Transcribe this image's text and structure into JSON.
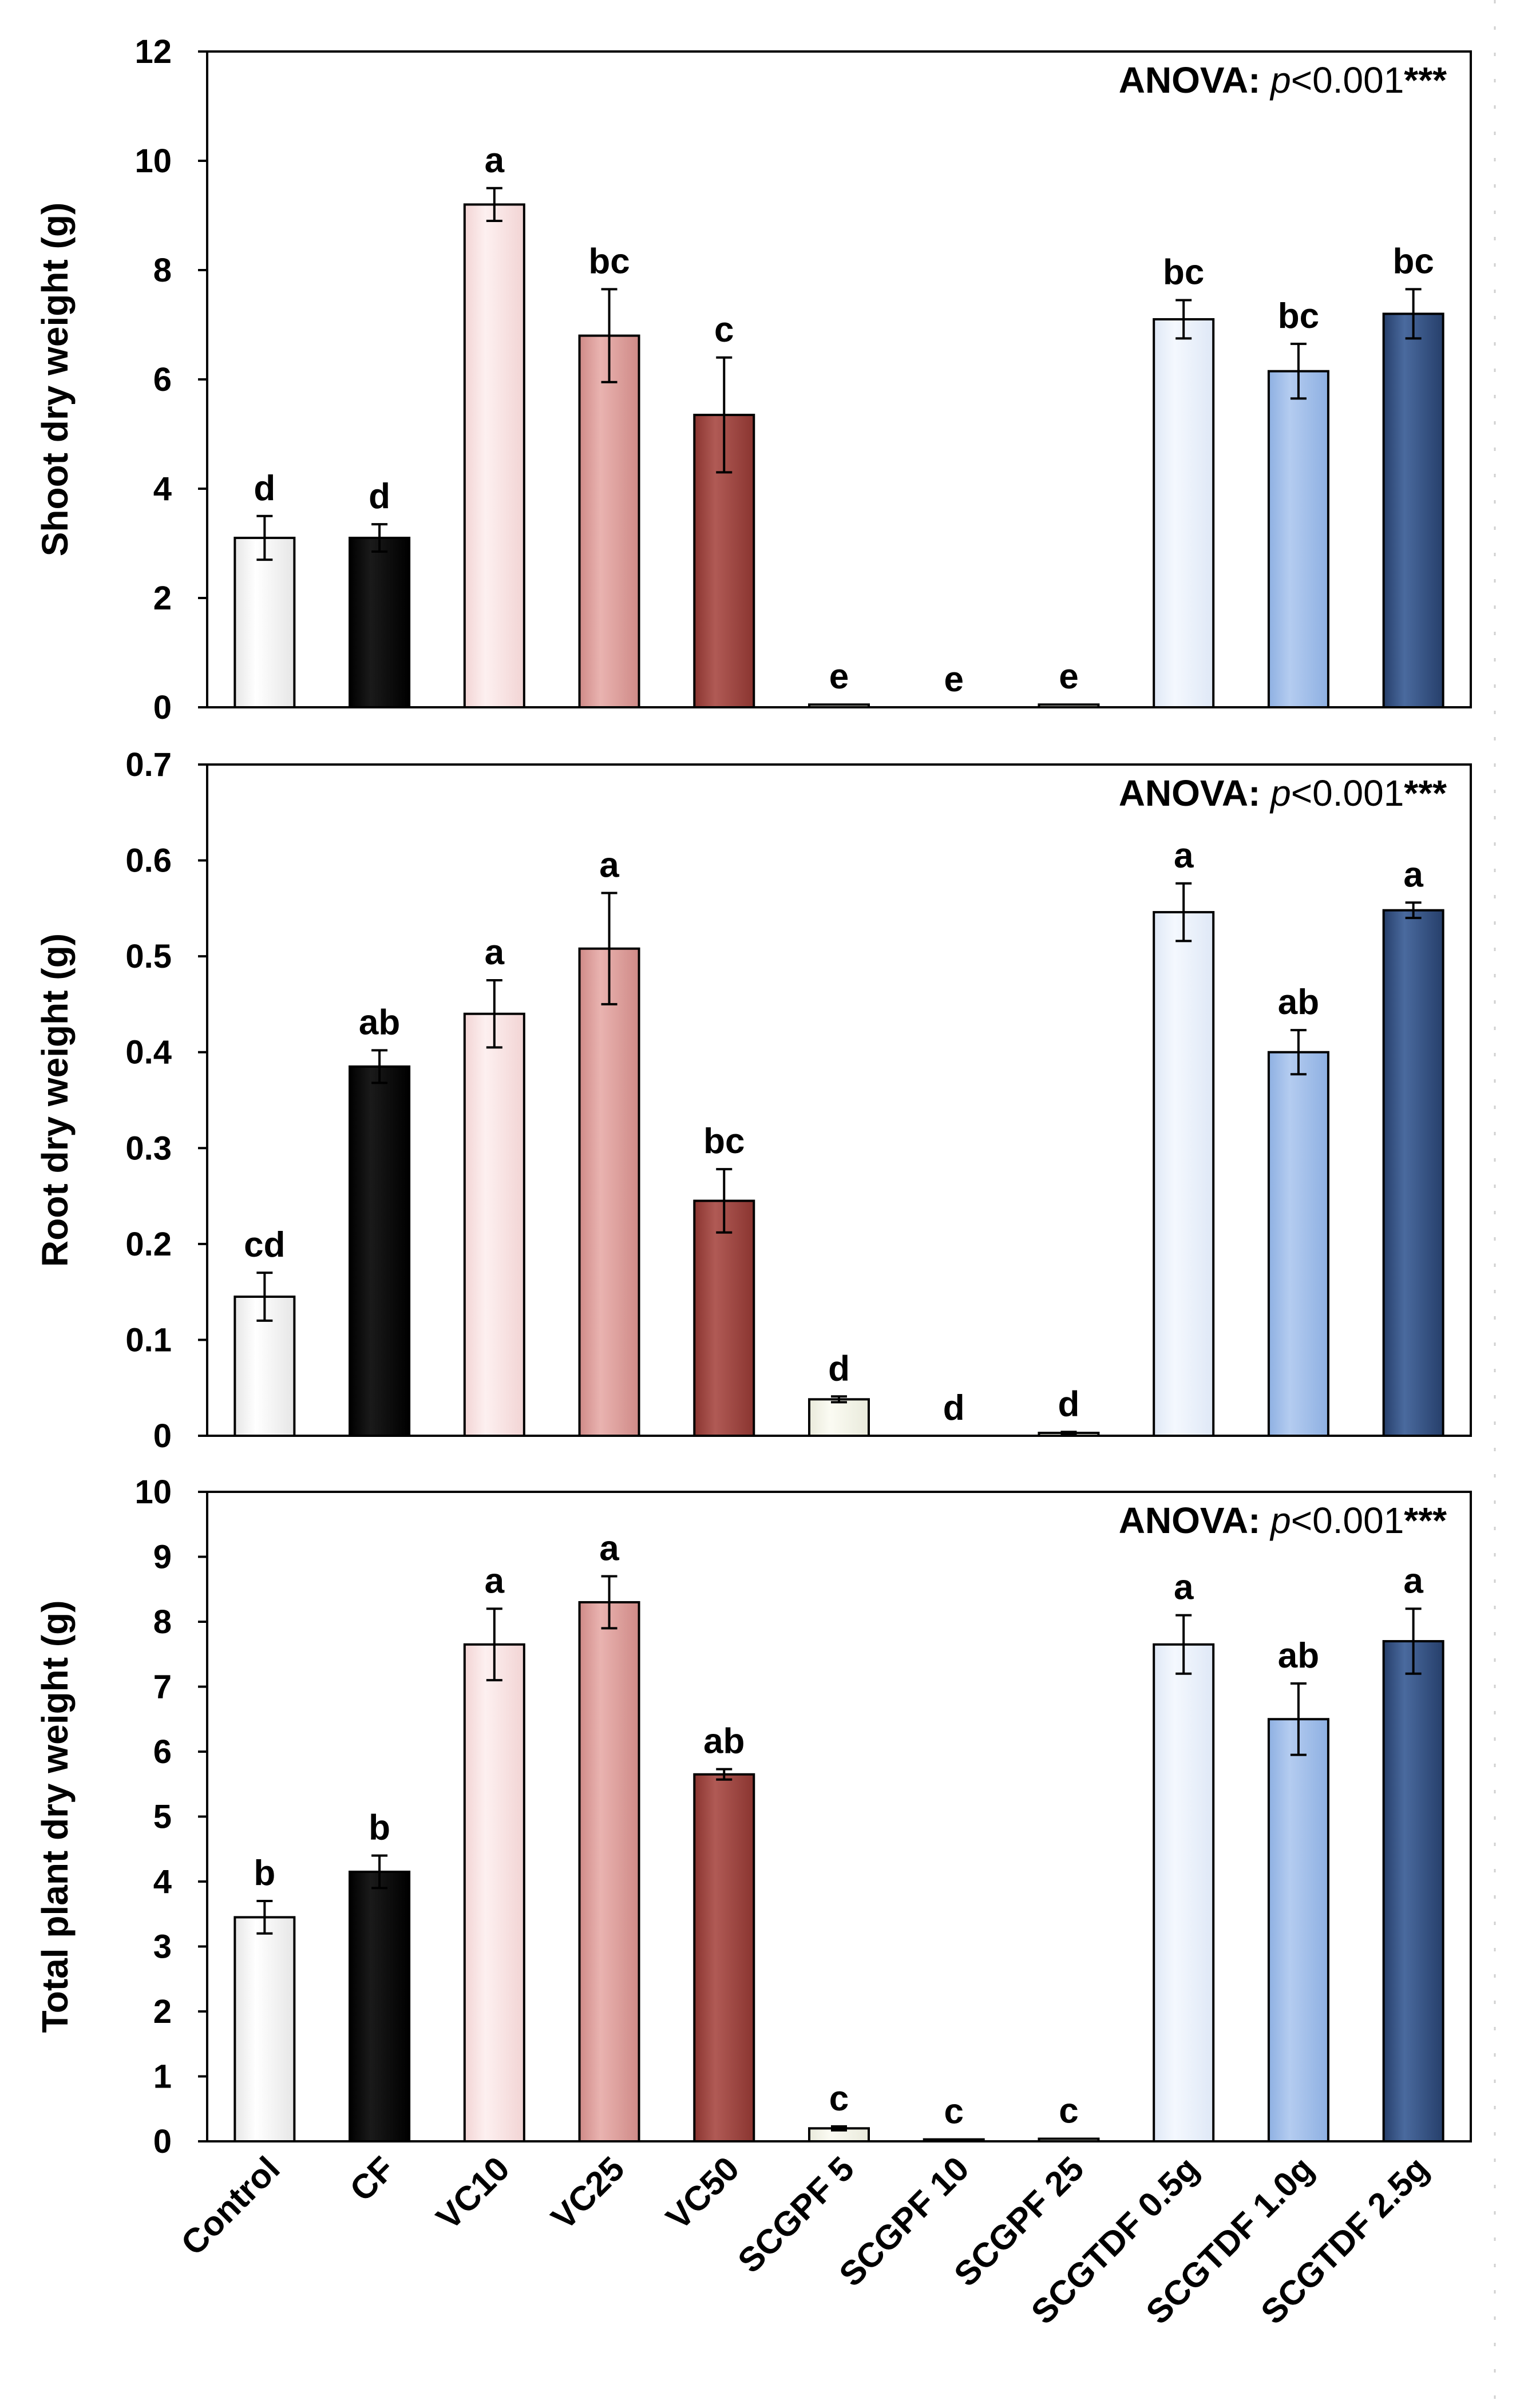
{
  "categories": [
    "Control",
    "CF",
    "VC10",
    "VC25",
    "VC50",
    "SCGPF 5",
    "SCGPF 10",
    "SCGPF 25",
    "SCGTDF 0.5g",
    "SCGTDF 1.0g",
    "SCGTDF 2.5g"
  ],
  "bar_colors": [
    [
      "#ffffff",
      "#e6e6e6"
    ],
    [
      "#1a1a1a",
      "#000000"
    ],
    [
      "#fdf0f0",
      "#f2d4d4"
    ],
    [
      "#e9b3b0",
      "#cf8a87"
    ],
    [
      "#b05a55",
      "#8a3530"
    ],
    [
      "#fbfbf3",
      "#e9eadb"
    ],
    [
      "#fbfbf3",
      "#e9eadb"
    ],
    [
      "#fbfbf3",
      "#e9eadb"
    ],
    [
      "#f4f8fe",
      "#dfe8f6"
    ],
    [
      "#b4ccf0",
      "#8eb0e2"
    ],
    [
      "#4a6a9e",
      "#263f6b"
    ]
  ],
  "chart_data": [
    {
      "type": "bar",
      "ylabel": "Shoot dry weight (g)",
      "ylim": [
        0,
        12
      ],
      "yticks": [
        "0",
        "2",
        "4",
        "6",
        "8",
        "10",
        "12"
      ],
      "anova": {
        "prefix": "ANOVA: ",
        "p": "p",
        "value": "<0.001",
        "stars": "***"
      },
      "values": [
        3.1,
        3.1,
        9.2,
        6.8,
        5.35,
        0.05,
        0.0,
        0.05,
        7.1,
        6.15,
        7.2
      ],
      "errors": [
        0.4,
        0.25,
        0.3,
        0.85,
        1.05,
        0.0,
        0.0,
        0.0,
        0.35,
        0.5,
        0.45
      ],
      "letters": [
        "d",
        "d",
        "a",
        "bc",
        "c",
        "e",
        "e",
        "e",
        "bc",
        "bc",
        "bc"
      ]
    },
    {
      "type": "bar",
      "ylabel": "Root dry weight (g)",
      "ylim": [
        0,
        0.7
      ],
      "yticks": [
        "0",
        "0.1",
        "0.2",
        "0.3",
        "0.4",
        "0.5",
        "0.6",
        "0.7"
      ],
      "anova": {
        "prefix": "ANOVA: ",
        "p": "p",
        "value": "<0.001",
        "stars": "***"
      },
      "values": [
        0.145,
        0.385,
        0.44,
        0.508,
        0.245,
        0.038,
        0.0,
        0.003,
        0.546,
        0.4,
        0.548
      ],
      "errors": [
        0.025,
        0.017,
        0.035,
        0.058,
        0.033,
        0.003,
        0.0,
        0.001,
        0.03,
        0.023,
        0.008
      ],
      "letters": [
        "cd",
        "ab",
        "a",
        "a",
        "bc",
        "d",
        "d",
        "d",
        "a",
        "ab",
        "a"
      ]
    },
    {
      "type": "bar",
      "ylabel": "Total plant dry weight (g)",
      "ylim": [
        0,
        10
      ],
      "yticks": [
        "0",
        "1",
        "2",
        "3",
        "4",
        "5",
        "6",
        "7",
        "8",
        "9",
        "10"
      ],
      "anova": {
        "prefix": "ANOVA: ",
        "p": "p",
        "value": "<0.001",
        "stars": "***"
      },
      "values": [
        3.45,
        4.15,
        7.65,
        8.3,
        5.65,
        0.2,
        0.03,
        0.04,
        7.65,
        6.5,
        7.7
      ],
      "errors": [
        0.25,
        0.25,
        0.55,
        0.4,
        0.08,
        0.03,
        0.0,
        0.0,
        0.45,
        0.55,
        0.5
      ],
      "letters": [
        "b",
        "b",
        "a",
        "a",
        "ab",
        "c",
        "c",
        "c",
        "a",
        "ab",
        "a"
      ]
    }
  ]
}
